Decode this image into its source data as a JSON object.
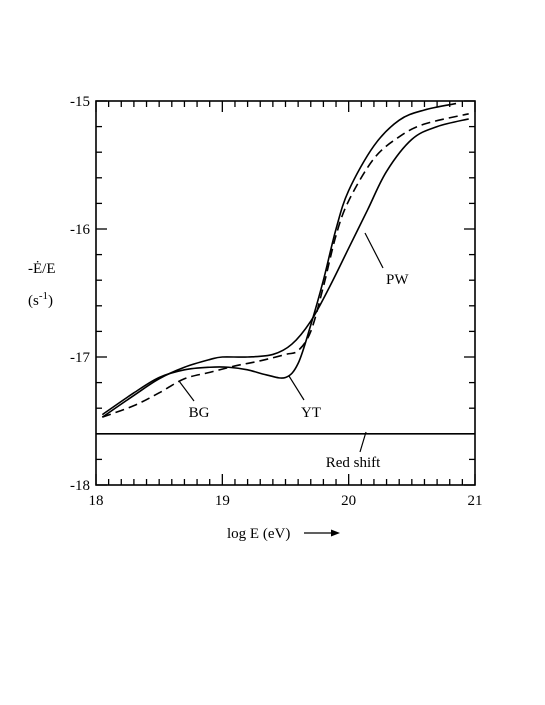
{
  "chart_data": {
    "type": "line",
    "xlabel": "log E (eV)",
    "ylabel_main": "-Ė/E",
    "ylabel_unit_prefix": "(s",
    "ylabel_unit_exp": "-1",
    "ylabel_unit_suffix": ")",
    "xlim": [
      18,
      21
    ],
    "ylim": [
      -18,
      -15
    ],
    "x_major_ticks": [
      18,
      19,
      20,
      21
    ],
    "x_tick_labels": [
      "18",
      "19",
      "20",
      "21"
    ],
    "x_minor_step": 0.1,
    "y_major_ticks": [
      -15,
      -16,
      -17,
      -18
    ],
    "y_tick_labels": [
      "-15",
      "-16",
      "-17",
      "-18"
    ],
    "y_minor_step": 0.2,
    "grid": false,
    "series": [
      {
        "name": "PW",
        "style": "solid",
        "x": [
          18.05,
          18.3,
          18.5,
          18.7,
          18.9,
          19.0,
          19.2,
          19.4,
          19.55,
          19.7,
          19.85,
          20.0,
          20.15,
          20.3,
          20.5,
          20.7,
          20.95
        ],
        "y": [
          -17.47,
          -17.3,
          -17.17,
          -17.08,
          -17.02,
          -17.0,
          -17.0,
          -16.98,
          -16.9,
          -16.72,
          -16.45,
          -16.15,
          -15.85,
          -15.55,
          -15.3,
          -15.2,
          -15.14
        ]
      },
      {
        "name": "YT",
        "style": "solid",
        "x": [
          18.05,
          18.3,
          18.5,
          18.7,
          18.9,
          19.05,
          19.2,
          19.35,
          19.5,
          19.6,
          19.7,
          19.8,
          19.9,
          20.0,
          20.2,
          20.4,
          20.6,
          20.85
        ],
        "y": [
          -17.45,
          -17.28,
          -17.16,
          -17.1,
          -17.08,
          -17.08,
          -17.1,
          -17.14,
          -17.16,
          -17.05,
          -16.75,
          -16.4,
          -16.0,
          -15.7,
          -15.35,
          -15.15,
          -15.07,
          -15.02
        ]
      },
      {
        "name": "BG",
        "style": "dashed",
        "x": [
          18.05,
          18.3,
          18.5,
          18.7,
          18.9,
          19.1,
          19.3,
          19.5,
          19.6,
          19.7,
          19.8,
          19.9,
          20.0,
          20.2,
          20.4,
          20.6,
          20.95
        ],
        "y": [
          -17.47,
          -17.38,
          -17.28,
          -17.17,
          -17.12,
          -17.07,
          -17.03,
          -16.98,
          -16.95,
          -16.8,
          -16.45,
          -16.05,
          -15.78,
          -15.45,
          -15.28,
          -15.18,
          -15.1
        ]
      }
    ],
    "hline": {
      "name": "Red shift",
      "y": -17.6
    },
    "annotations": [
      {
        "text": "PW",
        "target": "PW"
      },
      {
        "text": "YT",
        "target": "YT"
      },
      {
        "text": "BG",
        "target": "BG"
      },
      {
        "text": "Red shift",
        "target": "Red shift"
      }
    ]
  }
}
